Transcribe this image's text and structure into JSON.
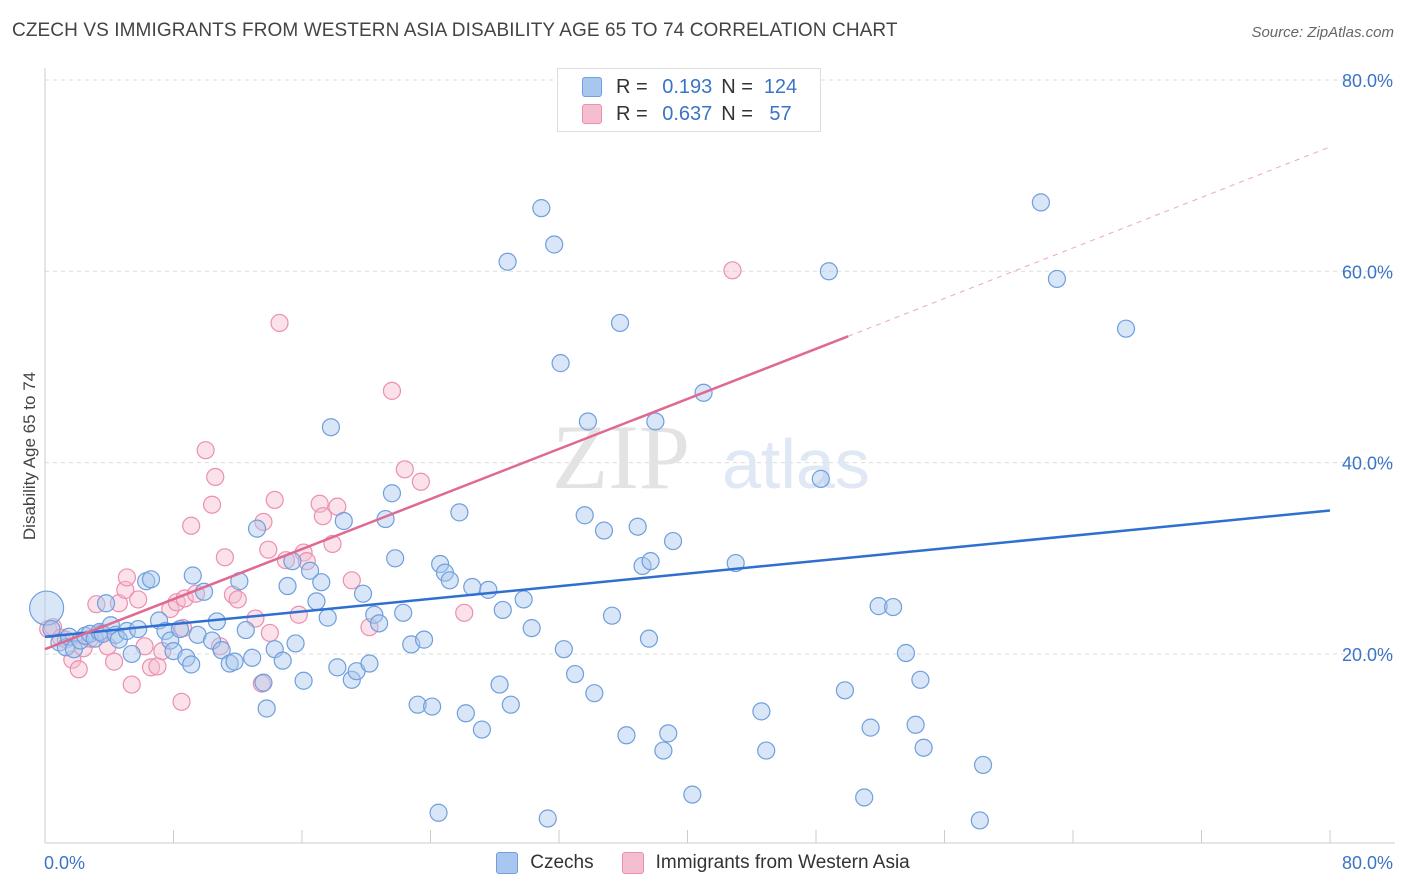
{
  "title": "CZECH VS IMMIGRANTS FROM WESTERN ASIA DISABILITY AGE 65 TO 74 CORRELATION CHART",
  "source": "Source: ZipAtlas.com",
  "watermark": {
    "zip": "ZIP",
    "atlas": "atlas"
  },
  "legend_top": {
    "rows": [
      {
        "r_label": "R =",
        "r_value": "0.193",
        "n_label": "N =",
        "n_value": "124"
      },
      {
        "r_label": "R =",
        "r_value": "0.637",
        "n_label": "N =",
        "n_value": "57"
      }
    ]
  },
  "bottom_legend": [
    "Czechs",
    "Immigrants from Western Asia"
  ],
  "colors": {
    "czech_fill": "#a9c7ee",
    "czech_stroke": "#6f9fdc",
    "czech_line": "#2f6fd0",
    "imm_fill": "#f5bdd0",
    "imm_stroke": "#ec8fb0",
    "imm_line": "#e06992",
    "axis_label": "#3a74c6"
  },
  "chart_data": {
    "type": "scatter",
    "title": "CZECH VS IMMIGRANTS FROM WESTERN ASIA DISABILITY AGE 65 TO 74 CORRELATION CHART",
    "xlabel": "",
    "ylabel": "Disability Age 65 to 74",
    "xlim": [
      0,
      80
    ],
    "ylim": [
      0,
      80
    ],
    "x_tick_labels": [
      "0.0%",
      "80.0%"
    ],
    "y_tick_labels": [
      "20.0%",
      "40.0%",
      "60.0%",
      "80.0%"
    ],
    "y_ticks": [
      20,
      40,
      60,
      80
    ],
    "grid": true,
    "legend_position": "top-center",
    "series": [
      {
        "name": "Czechs",
        "r": 0.193,
        "n": 124,
        "trend": {
          "x": [
            0,
            80
          ],
          "y": [
            21.8,
            35.0
          ]
        },
        "points": [
          [
            0.1,
            24.8
          ],
          [
            0.4,
            22.6
          ],
          [
            0.9,
            21.2
          ],
          [
            1.3,
            20.7
          ],
          [
            1.5,
            21.8
          ],
          [
            1.8,
            20.5
          ],
          [
            2.2,
            21.4
          ],
          [
            2.5,
            21.9
          ],
          [
            2.8,
            22.1
          ],
          [
            3.1,
            21.6
          ],
          [
            3.4,
            22.3
          ],
          [
            3.6,
            22.1
          ],
          [
            3.8,
            25.3
          ],
          [
            4.1,
            23.0
          ],
          [
            4.4,
            22.0
          ],
          [
            4.6,
            21.5
          ],
          [
            5.1,
            22.4
          ],
          [
            5.4,
            20.0
          ],
          [
            5.8,
            22.6
          ],
          [
            6.3,
            27.6
          ],
          [
            6.6,
            27.8
          ],
          [
            7.1,
            23.5
          ],
          [
            7.5,
            22.4
          ],
          [
            7.8,
            21.4
          ],
          [
            8.0,
            20.3
          ],
          [
            8.4,
            22.6
          ],
          [
            8.8,
            19.6
          ],
          [
            9.1,
            18.9
          ],
          [
            9.2,
            28.2
          ],
          [
            9.5,
            22.0
          ],
          [
            9.9,
            26.5
          ],
          [
            10.4,
            21.4
          ],
          [
            10.7,
            23.4
          ],
          [
            11.0,
            20.4
          ],
          [
            11.5,
            19.0
          ],
          [
            11.8,
            19.2
          ],
          [
            12.1,
            27.6
          ],
          [
            12.5,
            22.5
          ],
          [
            12.9,
            19.6
          ],
          [
            13.2,
            33.1
          ],
          [
            13.6,
            17.0
          ],
          [
            13.8,
            14.3
          ],
          [
            14.3,
            20.5
          ],
          [
            14.8,
            19.3
          ],
          [
            15.1,
            27.1
          ],
          [
            15.4,
            29.7
          ],
          [
            15.6,
            21.1
          ],
          [
            16.1,
            17.2
          ],
          [
            16.5,
            28.7
          ],
          [
            16.9,
            25.5
          ],
          [
            17.2,
            27.5
          ],
          [
            17.6,
            23.8
          ],
          [
            17.8,
            43.7
          ],
          [
            18.2,
            18.6
          ],
          [
            18.6,
            33.9
          ],
          [
            19.1,
            17.3
          ],
          [
            19.4,
            18.2
          ],
          [
            19.8,
            26.3
          ],
          [
            20.2,
            19.0
          ],
          [
            20.5,
            24.1
          ],
          [
            20.8,
            23.2
          ],
          [
            21.2,
            34.1
          ],
          [
            21.6,
            36.8
          ],
          [
            21.8,
            30.0
          ],
          [
            22.3,
            24.3
          ],
          [
            22.8,
            21.0
          ],
          [
            23.2,
            14.7
          ],
          [
            23.6,
            21.5
          ],
          [
            24.1,
            14.5
          ],
          [
            24.6,
            29.4
          ],
          [
            24.9,
            28.5
          ],
          [
            25.2,
            27.7
          ],
          [
            25.8,
            34.8
          ],
          [
            26.2,
            13.8
          ],
          [
            26.6,
            27.0
          ],
          [
            27.2,
            12.1
          ],
          [
            27.6,
            26.7
          ],
          [
            28.3,
            16.8
          ],
          [
            28.5,
            24.6
          ],
          [
            29.0,
            14.7
          ],
          [
            28.8,
            61.0
          ],
          [
            29.8,
            25.7
          ],
          [
            30.3,
            22.7
          ],
          [
            30.9,
            66.6
          ],
          [
            31.3,
            2.8
          ],
          [
            31.7,
            62.8
          ],
          [
            32.1,
            50.4
          ],
          [
            32.3,
            20.5
          ],
          [
            33.0,
            17.9
          ],
          [
            33.6,
            34.5
          ],
          [
            33.8,
            44.3
          ],
          [
            34.2,
            15.9
          ],
          [
            34.8,
            32.9
          ],
          [
            35.3,
            24.0
          ],
          [
            35.8,
            54.6
          ],
          [
            36.2,
            11.5
          ],
          [
            36.9,
            33.3
          ],
          [
            37.2,
            29.2
          ],
          [
            37.6,
            21.6
          ],
          [
            37.7,
            29.7
          ],
          [
            38.0,
            44.3
          ],
          [
            38.8,
            11.7
          ],
          [
            38.5,
            9.9
          ],
          [
            39.1,
            31.8
          ],
          [
            40.3,
            5.3
          ],
          [
            41.0,
            47.3
          ],
          [
            43.0,
            29.5
          ],
          [
            44.6,
            14.0
          ],
          [
            44.9,
            9.9
          ],
          [
            48.3,
            38.3
          ],
          [
            48.8,
            60.0
          ],
          [
            49.8,
            16.2
          ],
          [
            51.0,
            5.0
          ],
          [
            51.4,
            12.3
          ],
          [
            51.9,
            25.0
          ],
          [
            52.8,
            24.9
          ],
          [
            53.6,
            20.1
          ],
          [
            54.2,
            12.6
          ],
          [
            54.5,
            17.3
          ],
          [
            54.7,
            10.2
          ],
          [
            58.4,
            8.4
          ],
          [
            58.2,
            2.6
          ],
          [
            24.5,
            3.4
          ],
          [
            62.0,
            67.2
          ],
          [
            63.0,
            59.2
          ],
          [
            67.3,
            54.0
          ]
        ]
      },
      {
        "name": "Immigrants from Western Asia",
        "r": 0.637,
        "n": 57,
        "trend": {
          "x": [
            0,
            50
          ],
          "y": [
            20.5,
            53.2
          ]
        },
        "trend_extension": {
          "x": [
            50,
            80
          ],
          "y": [
            53.2,
            73.0
          ]
        },
        "points": [
          [
            0.2,
            22.6
          ],
          [
            0.5,
            22.8
          ],
          [
            1.0,
            21.7
          ],
          [
            1.3,
            21.5
          ],
          [
            1.7,
            19.4
          ],
          [
            2.1,
            18.4
          ],
          [
            2.4,
            20.6
          ],
          [
            2.8,
            21.6
          ],
          [
            3.2,
            25.2
          ],
          [
            3.5,
            22.2
          ],
          [
            3.9,
            20.8
          ],
          [
            4.3,
            19.2
          ],
          [
            4.6,
            25.3
          ],
          [
            5.0,
            26.7
          ],
          [
            5.1,
            28.0
          ],
          [
            5.4,
            16.8
          ],
          [
            5.8,
            25.7
          ],
          [
            6.2,
            20.8
          ],
          [
            6.6,
            18.6
          ],
          [
            7.0,
            18.7
          ],
          [
            7.3,
            20.3
          ],
          [
            7.8,
            24.7
          ],
          [
            8.2,
            25.4
          ],
          [
            8.6,
            22.7
          ],
          [
            8.7,
            25.8
          ],
          [
            8.5,
            15.0
          ],
          [
            9.4,
            26.3
          ],
          [
            9.1,
            33.4
          ],
          [
            10.0,
            41.3
          ],
          [
            10.4,
            35.6
          ],
          [
            10.6,
            38.5
          ],
          [
            10.9,
            20.8
          ],
          [
            11.2,
            30.1
          ],
          [
            11.7,
            26.2
          ],
          [
            12.0,
            25.7
          ],
          [
            13.5,
            16.9
          ],
          [
            13.1,
            23.7
          ],
          [
            13.6,
            33.8
          ],
          [
            13.9,
            30.9
          ],
          [
            14.3,
            36.1
          ],
          [
            14.0,
            22.2
          ],
          [
            14.6,
            54.6
          ],
          [
            15.0,
            29.8
          ],
          [
            15.8,
            24.1
          ],
          [
            16.1,
            30.6
          ],
          [
            16.3,
            29.7
          ],
          [
            17.1,
            35.7
          ],
          [
            17.3,
            34.4
          ],
          [
            17.9,
            31.5
          ],
          [
            18.2,
            35.4
          ],
          [
            19.1,
            27.7
          ],
          [
            20.2,
            22.8
          ],
          [
            21.6,
            47.5
          ],
          [
            22.4,
            39.3
          ],
          [
            23.4,
            38.0
          ],
          [
            26.1,
            24.3
          ],
          [
            42.8,
            60.1
          ]
        ]
      }
    ]
  }
}
